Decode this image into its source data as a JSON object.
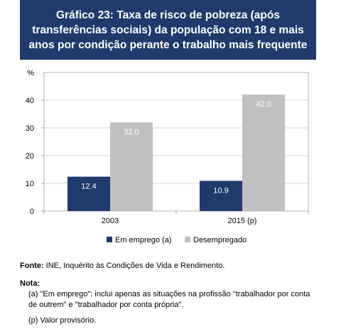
{
  "title_lines": [
    "Gráfico 23: Taxa de risco de pobreza (após",
    "transferências sociais) da população com 18 e mais",
    "anos por condição perante o trabalho mais frequente"
  ],
  "chart_data": {
    "type": "bar",
    "ylabel": "%",
    "categories": [
      "2003",
      "2015 (p)"
    ],
    "ylim": [
      0,
      50
    ],
    "yticks": [
      0,
      10,
      20,
      30,
      40
    ],
    "grid": true,
    "legend_position": "bottom",
    "series": [
      {
        "name": "Em emprego (a)",
        "values": [
          12.4,
          10.9
        ],
        "labels": [
          "12.4",
          "10.9"
        ],
        "color": "#1f3a6b"
      },
      {
        "name": "Desempregado",
        "values": [
          32.0,
          42.0
        ],
        "labels": [
          "32.0",
          "42.0"
        ],
        "color": "#c0c0c0"
      }
    ]
  },
  "source": {
    "label": "Fonte:",
    "text": " INE, Inquérito às Condições de Vida e Rendimento."
  },
  "notes": {
    "heading": "Nota:",
    "a": "(a) \"Em emprego\": inclui apenas as situações na profissão \"trabalhador por conta de outrem\" e \"trabalhador por conta própria\".",
    "p": "(p) Valor provisório."
  }
}
